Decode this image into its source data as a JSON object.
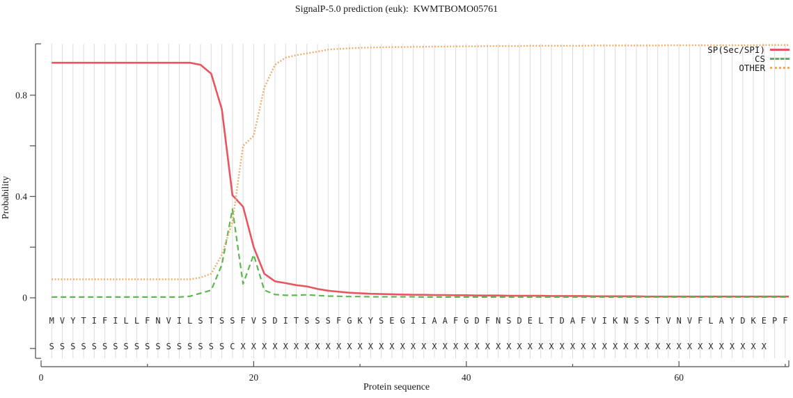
{
  "chart_data": {
    "type": "line",
    "title": "SignalP-5.0 prediction (euk):  KWMTBOMO05761",
    "xlabel": "Protein sequence",
    "ylabel": "Probability",
    "xlim": [
      0,
      71
    ],
    "ylim": [
      -0.25,
      1.0
    ],
    "grid": "vertical-per-residue",
    "legend_position": "top-right",
    "yticks": [
      {
        "v": 0,
        "label": "0"
      },
      {
        "v": 0.4,
        "label": "0.4"
      },
      {
        "v": 0.8,
        "label": "0.8"
      }
    ],
    "yticks_minor": [
      -0.2,
      0.2,
      0.6
    ],
    "xticks": [
      {
        "v": 0,
        "label": "0"
      },
      {
        "v": 20,
        "label": "20"
      },
      {
        "v": 40,
        "label": "40"
      },
      {
        "v": 60,
        "label": "60"
      }
    ],
    "xticks_minor": [
      10,
      30,
      50,
      70
    ],
    "x": "residue positions 1-70",
    "sequence_row": "MVYTIFILLFNVILSTSSFVSDITSSSFGKYSEGIIAAFGDFNSDELTDAFVIKNSSTVNVFLAYDKEPF",
    "marks_row": "SSSSSSSSSSSSSSSSSCXXXXXXXXXXXXXXXXXXXXXXXXXXXXXXXXXXXXXXXXXXXXXXXXXX",
    "series": [
      {
        "name": "SP(Sec/SPI)",
        "color": "#e85560",
        "style": "solid",
        "values": [
          0.928,
          0.928,
          0.928,
          0.928,
          0.928,
          0.928,
          0.928,
          0.928,
          0.928,
          0.928,
          0.928,
          0.928,
          0.928,
          0.928,
          0.92,
          0.885,
          0.745,
          0.405,
          0.36,
          0.2,
          0.095,
          0.065,
          0.058,
          0.05,
          0.045,
          0.035,
          0.028,
          0.024,
          0.02,
          0.018,
          0.016,
          0.015,
          0.014,
          0.013,
          0.012,
          0.012,
          0.011,
          0.011,
          0.01,
          0.01,
          0.009,
          0.009,
          0.009,
          0.008,
          0.008,
          0.008,
          0.008,
          0.007,
          0.007,
          0.007,
          0.007,
          0.006,
          0.006,
          0.006,
          0.006,
          0.006,
          0.005,
          0.005,
          0.005,
          0.005,
          0.005,
          0.005,
          0.005,
          0.005,
          0.005,
          0.005,
          0.005,
          0.005,
          0.005,
          0.005
        ]
      },
      {
        "name": "CS",
        "color": "#5cb751",
        "style": "dashed",
        "values": [
          0.003,
          0.003,
          0.003,
          0.003,
          0.003,
          0.003,
          0.003,
          0.003,
          0.003,
          0.003,
          0.003,
          0.003,
          0.003,
          0.006,
          0.018,
          0.03,
          0.13,
          0.35,
          0.055,
          0.17,
          0.03,
          0.013,
          0.01,
          0.01,
          0.012,
          0.009,
          0.007,
          0.006,
          0.005,
          0.005,
          0.004,
          0.004,
          0.004,
          0.004,
          0.004,
          0.003,
          0.003,
          0.003,
          0.003,
          0.003,
          0.003,
          0.003,
          0.003,
          0.003,
          0.003,
          0.003,
          0.003,
          0.003,
          0.003,
          0.003,
          0.003,
          0.003,
          0.003,
          0.003,
          0.003,
          0.003,
          0.003,
          0.003,
          0.003,
          0.003,
          0.003,
          0.003,
          0.003,
          0.003,
          0.003,
          0.003,
          0.003,
          0.003,
          0.003,
          0.003
        ]
      },
      {
        "name": "OTHER",
        "color": "#f2a75c",
        "style": "dotted",
        "values": [
          0.073,
          0.073,
          0.073,
          0.073,
          0.073,
          0.073,
          0.073,
          0.073,
          0.073,
          0.073,
          0.073,
          0.073,
          0.073,
          0.073,
          0.08,
          0.095,
          0.17,
          0.3,
          0.6,
          0.64,
          0.83,
          0.92,
          0.948,
          0.958,
          0.965,
          0.972,
          0.98,
          0.983,
          0.985,
          0.987,
          0.988,
          0.989,
          0.99,
          0.99,
          0.991,
          0.991,
          0.992,
          0.992,
          0.993,
          0.993,
          0.993,
          0.994,
          0.994,
          0.994,
          0.994,
          0.995,
          0.995,
          0.995,
          0.995,
          0.995,
          0.995,
          0.996,
          0.996,
          0.996,
          0.996,
          0.996,
          0.996,
          0.996,
          0.997,
          0.997,
          0.997,
          0.997,
          0.997,
          0.997,
          0.997,
          0.997,
          0.997,
          0.998,
          0.998,
          0.998
        ]
      }
    ],
    "colors": {
      "grid": "#dcdcdc",
      "axis": "#4d4d4d",
      "text": "#1a1a1a",
      "sequence_text": "#2b2b2b"
    }
  }
}
